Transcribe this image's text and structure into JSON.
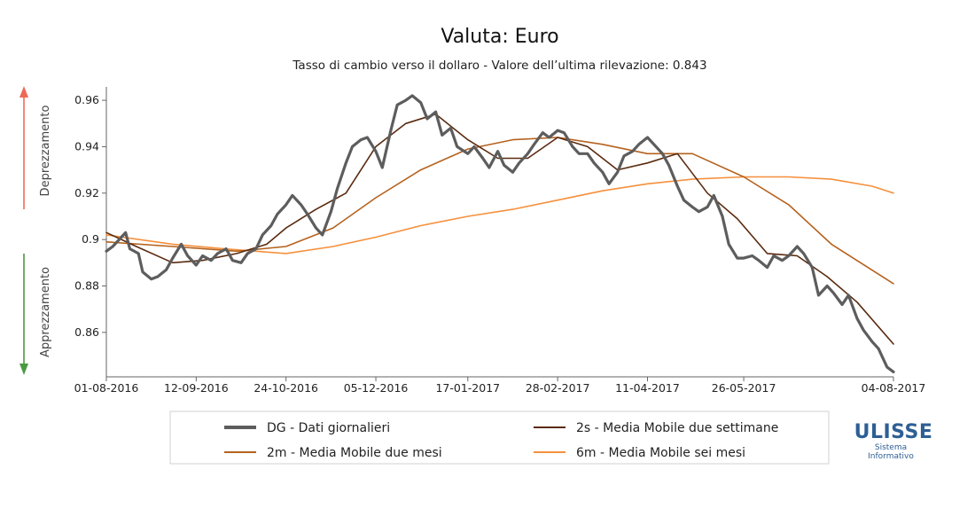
{
  "chart_data": {
    "type": "line",
    "title": "Valuta: Euro",
    "subtitle": "Tasso di cambio verso il dollaro - Valore dell’ultima rilevazione: 0.843",
    "ylabel_up": "Deprezzamento",
    "ylabel_down": "Apprezzamento",
    "ylim": [
      0.842,
      0.965
    ],
    "yticks": [
      0.86,
      0.88,
      0.9,
      0.92,
      0.94,
      0.96
    ],
    "ytick_labels": [
      "0.86",
      "0.88",
      "0.9",
      "0.92",
      "0.94",
      "0.96"
    ],
    "xlim": [
      "2016-08-01",
      "2017-08-04"
    ],
    "xticks": [
      "2016-08-01",
      "2016-09-12",
      "2016-10-24",
      "2016-12-05",
      "2017-01-17",
      "2017-02-28",
      "2017-04-11",
      "2017-05-26",
      "2017-08-04"
    ],
    "xtick_labels": [
      "01-08-2016",
      "12-09-2016",
      "24-10-2016",
      "05-12-2016",
      "17-01-2017",
      "28-02-2017",
      "11-04-2017",
      "26-05-2017",
      "04-08-2017"
    ],
    "grid": false,
    "up_arrow_color": "#ee6a55",
    "down_arrow_color": "#4a9a44",
    "series": [
      {
        "key": "dg",
        "name": "DG - Dati giornalieri",
        "color": "#5d5d5d",
        "points": [
          [
            "2016-08-01",
            0.895
          ],
          [
            "2016-08-04",
            0.897
          ],
          [
            "2016-08-08",
            0.901
          ],
          [
            "2016-08-10",
            0.903
          ],
          [
            "2016-08-12",
            0.896
          ],
          [
            "2016-08-16",
            0.894
          ],
          [
            "2016-08-18",
            0.886
          ],
          [
            "2016-08-22",
            0.883
          ],
          [
            "2016-08-25",
            0.884
          ],
          [
            "2016-08-29",
            0.887
          ],
          [
            "2016-09-01",
            0.892
          ],
          [
            "2016-09-05",
            0.898
          ],
          [
            "2016-09-08",
            0.893
          ],
          [
            "2016-09-12",
            0.889
          ],
          [
            "2016-09-15",
            0.893
          ],
          [
            "2016-09-19",
            0.891
          ],
          [
            "2016-09-22",
            0.894
          ],
          [
            "2016-09-26",
            0.896
          ],
          [
            "2016-09-29",
            0.891
          ],
          [
            "2016-10-03",
            0.89
          ],
          [
            "2016-10-06",
            0.894
          ],
          [
            "2016-10-10",
            0.896
          ],
          [
            "2016-10-13",
            0.902
          ],
          [
            "2016-10-17",
            0.906
          ],
          [
            "2016-10-20",
            0.911
          ],
          [
            "2016-10-24",
            0.915
          ],
          [
            "2016-10-27",
            0.919
          ],
          [
            "2016-10-31",
            0.915
          ],
          [
            "2016-11-03",
            0.911
          ],
          [
            "2016-11-07",
            0.905
          ],
          [
            "2016-11-10",
            0.902
          ],
          [
            "2016-11-14",
            0.912
          ],
          [
            "2016-11-17",
            0.922
          ],
          [
            "2016-11-21",
            0.933
          ],
          [
            "2016-11-24",
            0.94
          ],
          [
            "2016-11-28",
            0.943
          ],
          [
            "2016-12-01",
            0.944
          ],
          [
            "2016-12-05",
            0.938
          ],
          [
            "2016-12-08",
            0.931
          ],
          [
            "2016-12-12",
            0.947
          ],
          [
            "2016-12-15",
            0.958
          ],
          [
            "2016-12-19",
            0.96
          ],
          [
            "2016-12-22",
            0.962
          ],
          [
            "2016-12-26",
            0.959
          ],
          [
            "2016-12-29",
            0.952
          ],
          [
            "2017-01-02",
            0.955
          ],
          [
            "2017-01-05",
            0.945
          ],
          [
            "2017-01-09",
            0.948
          ],
          [
            "2017-01-12",
            0.94
          ],
          [
            "2017-01-17",
            0.937
          ],
          [
            "2017-01-20",
            0.94
          ],
          [
            "2017-01-24",
            0.935
          ],
          [
            "2017-01-27",
            0.931
          ],
          [
            "2017-01-31",
            0.938
          ],
          [
            "2017-02-03",
            0.932
          ],
          [
            "2017-02-07",
            0.929
          ],
          [
            "2017-02-10",
            0.933
          ],
          [
            "2017-02-14",
            0.937
          ],
          [
            "2017-02-17",
            0.941
          ],
          [
            "2017-02-21",
            0.946
          ],
          [
            "2017-02-24",
            0.944
          ],
          [
            "2017-02-28",
            0.947
          ],
          [
            "2017-03-03",
            0.946
          ],
          [
            "2017-03-07",
            0.94
          ],
          [
            "2017-03-10",
            0.937
          ],
          [
            "2017-03-14",
            0.937
          ],
          [
            "2017-03-17",
            0.933
          ],
          [
            "2017-03-21",
            0.929
          ],
          [
            "2017-03-24",
            0.924
          ],
          [
            "2017-03-28",
            0.929
          ],
          [
            "2017-03-31",
            0.936
          ],
          [
            "2017-04-04",
            0.938
          ],
          [
            "2017-04-07",
            0.941
          ],
          [
            "2017-04-11",
            0.944
          ],
          [
            "2017-04-14",
            0.941
          ],
          [
            "2017-04-18",
            0.937
          ],
          [
            "2017-04-21",
            0.932
          ],
          [
            "2017-04-25",
            0.923
          ],
          [
            "2017-04-28",
            0.917
          ],
          [
            "2017-05-02",
            0.914
          ],
          [
            "2017-05-05",
            0.912
          ],
          [
            "2017-05-09",
            0.914
          ],
          [
            "2017-05-12",
            0.919
          ],
          [
            "2017-05-16",
            0.91
          ],
          [
            "2017-05-19",
            0.898
          ],
          [
            "2017-05-23",
            0.892
          ],
          [
            "2017-05-26",
            0.892
          ],
          [
            "2017-05-30",
            0.893
          ],
          [
            "2017-06-02",
            0.891
          ],
          [
            "2017-06-06",
            0.888
          ],
          [
            "2017-06-09",
            0.893
          ],
          [
            "2017-06-13",
            0.891
          ],
          [
            "2017-06-16",
            0.893
          ],
          [
            "2017-06-20",
            0.897
          ],
          [
            "2017-06-23",
            0.894
          ],
          [
            "2017-06-27",
            0.888
          ],
          [
            "2017-06-30",
            0.876
          ],
          [
            "2017-07-04",
            0.88
          ],
          [
            "2017-07-07",
            0.877
          ],
          [
            "2017-07-11",
            0.872
          ],
          [
            "2017-07-14",
            0.876
          ],
          [
            "2017-07-18",
            0.866
          ],
          [
            "2017-07-21",
            0.861
          ],
          [
            "2017-07-25",
            0.856
          ],
          [
            "2017-07-28",
            0.853
          ],
          [
            "2017-08-01",
            0.845
          ],
          [
            "2017-08-04",
            0.843
          ]
        ]
      },
      {
        "key": "m2s",
        "name": "2s - Media Mobile due settimane",
        "color": "#5a2b10",
        "points": [
          [
            "2016-08-01",
            0.903
          ],
          [
            "2016-08-15",
            0.897
          ],
          [
            "2016-09-01",
            0.89
          ],
          [
            "2016-09-15",
            0.891
          ],
          [
            "2016-10-01",
            0.894
          ],
          [
            "2016-10-15",
            0.898
          ],
          [
            "2016-10-24",
            0.905
          ],
          [
            "2016-11-07",
            0.913
          ],
          [
            "2016-11-21",
            0.92
          ],
          [
            "2016-12-05",
            0.94
          ],
          [
            "2016-12-19",
            0.95
          ],
          [
            "2017-01-02",
            0.954
          ],
          [
            "2017-01-17",
            0.943
          ],
          [
            "2017-01-31",
            0.935
          ],
          [
            "2017-02-14",
            0.935
          ],
          [
            "2017-02-28",
            0.944
          ],
          [
            "2017-03-14",
            0.94
          ],
          [
            "2017-03-28",
            0.93
          ],
          [
            "2017-04-11",
            0.933
          ],
          [
            "2017-04-25",
            0.937
          ],
          [
            "2017-05-09",
            0.92
          ],
          [
            "2017-05-23",
            0.909
          ],
          [
            "2017-06-06",
            0.894
          ],
          [
            "2017-06-20",
            0.893
          ],
          [
            "2017-07-04",
            0.884
          ],
          [
            "2017-07-18",
            0.873
          ],
          [
            "2017-08-04",
            0.855
          ]
        ]
      },
      {
        "key": "m2m",
        "name": "2m - Media Mobile due mesi",
        "color": "#b5621e",
        "points": [
          [
            "2016-08-01",
            0.899
          ],
          [
            "2016-09-01",
            0.897
          ],
          [
            "2016-10-01",
            0.895
          ],
          [
            "2016-10-24",
            0.897
          ],
          [
            "2016-11-15",
            0.905
          ],
          [
            "2016-12-05",
            0.918
          ],
          [
            "2016-12-26",
            0.93
          ],
          [
            "2017-01-17",
            0.939
          ],
          [
            "2017-02-07",
            0.943
          ],
          [
            "2017-02-28",
            0.944
          ],
          [
            "2017-03-21",
            0.941
          ],
          [
            "2017-04-11",
            0.937
          ],
          [
            "2017-05-02",
            0.937
          ],
          [
            "2017-05-26",
            0.927
          ],
          [
            "2017-06-16",
            0.915
          ],
          [
            "2017-07-06",
            0.898
          ],
          [
            "2017-08-04",
            0.881
          ]
        ]
      },
      {
        "key": "m6m",
        "name": "6m - Media Mobile sei mesi",
        "color": "#f5903d",
        "points": [
          [
            "2016-08-01",
            0.902
          ],
          [
            "2016-09-01",
            0.898
          ],
          [
            "2016-09-25",
            0.896
          ],
          [
            "2016-10-24",
            0.894
          ],
          [
            "2016-11-15",
            0.897
          ],
          [
            "2016-12-05",
            0.901
          ],
          [
            "2016-12-26",
            0.906
          ],
          [
            "2017-01-17",
            0.91
          ],
          [
            "2017-02-07",
            0.913
          ],
          [
            "2017-02-28",
            0.917
          ],
          [
            "2017-03-21",
            0.921
          ],
          [
            "2017-04-11",
            0.924
          ],
          [
            "2017-05-02",
            0.926
          ],
          [
            "2017-05-26",
            0.927
          ],
          [
            "2017-06-16",
            0.927
          ],
          [
            "2017-07-06",
            0.926
          ],
          [
            "2017-07-25",
            0.923
          ],
          [
            "2017-08-04",
            0.92
          ]
        ]
      }
    ],
    "legend": {
      "placement": "bottom",
      "order": [
        "dg",
        "m2s",
        "m2m",
        "m6m"
      ]
    }
  },
  "logo": {
    "name": "ULISSE",
    "line1": "Sistema",
    "line2": "Informativo"
  }
}
